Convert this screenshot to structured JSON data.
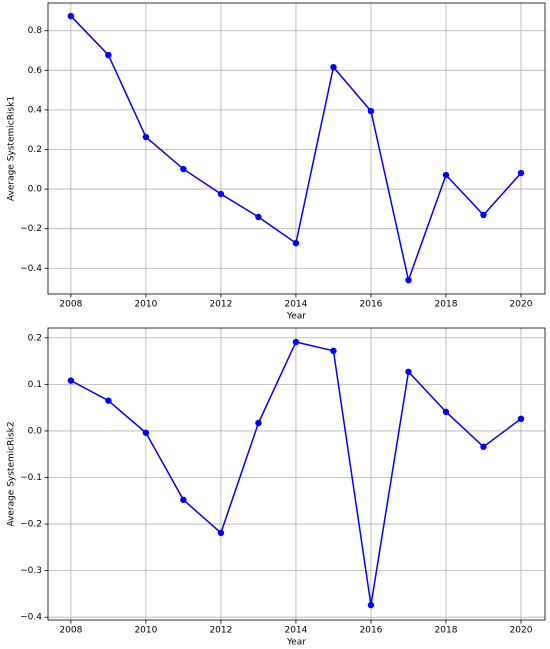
{
  "chart_data": [
    {
      "type": "line",
      "x_label": "Year",
      "y_label": "Average SystemicRisk1",
      "x": [
        2008,
        2009,
        2010,
        2011,
        2012,
        2013,
        2014,
        2015,
        2016,
        2017,
        2018,
        2019,
        2020
      ],
      "series": [
        {
          "color": "#0000ff",
          "values": [
            0.874,
            0.677,
            0.263,
            0.101,
            -0.025,
            -0.141,
            -0.273,
            0.616,
            0.394,
            -0.46,
            0.071,
            -0.131,
            0.081
          ]
        }
      ],
      "xlim": [
        2007.39,
        2020.64
      ],
      "xticks": [
        2008,
        2010,
        2012,
        2014,
        2016,
        2018,
        2020
      ],
      "ylim": [
        -0.53,
        0.94
      ],
      "yticks": [
        {
          "value": -0.4,
          "label": "−0.4"
        },
        {
          "value": -0.2,
          "label": "−0.2"
        },
        {
          "value": 0,
          "label": "0.0"
        },
        0.2,
        0.4,
        0.6,
        0.8
      ],
      "grid": true
    },
    {
      "type": "line",
      "x_label": "Year",
      "y_label": "Average SystemicRisk2",
      "x": [
        2008,
        2009,
        2010,
        2011,
        2012,
        2013,
        2014,
        2015,
        2016,
        2017,
        2018,
        2019,
        2020
      ],
      "series": [
        {
          "color": "#0000ff",
          "values": [
            0.108,
            0.065,
            -0.004,
            -0.148,
            -0.219,
            0.017,
            0.191,
            0.172,
            -0.374,
            0.127,
            0.041,
            -0.034,
            0.026
          ]
        }
      ],
      "xlim": [
        2007.39,
        2020.64
      ],
      "xticks": [
        2008,
        2010,
        2012,
        2014,
        2016,
        2018,
        2020
      ],
      "ylim": [
        -0.406,
        0.221
      ],
      "yticks": [
        {
          "value": -0.4,
          "label": "−0.4"
        },
        {
          "value": -0.3,
          "label": "−0.3"
        },
        {
          "value": -0.2,
          "label": "−0.2"
        },
        {
          "value": -0.1,
          "label": "−0.1"
        },
        {
          "value": 0,
          "label": "0.0"
        },
        0.1,
        0.2
      ],
      "grid": true
    }
  ]
}
